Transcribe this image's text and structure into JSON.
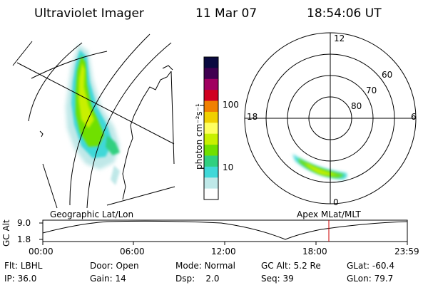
{
  "header": {
    "title": "Ultraviolet Imager",
    "date": "11 Mar 07",
    "time": "18:54:06 UT"
  },
  "geo_panel": {
    "label": "Geographic Lat/Lon"
  },
  "colorbar": {
    "unit_label": "photon cm⁻²s⁻¹",
    "tick_labels": [
      "100",
      "10"
    ],
    "colors": [
      "#0a0a40",
      "#400050",
      "#a00060",
      "#d00020",
      "#f08000",
      "#f0d000",
      "#ffff60",
      "#c8f000",
      "#70e000",
      "#30d080",
      "#40d8d8",
      "#bfe8e8",
      "#ffffff"
    ]
  },
  "polar_panel": {
    "label": "Apex MLat/MLT",
    "mlt_labels": {
      "top": "12",
      "left": "18",
      "right": "6",
      "bottom": "0"
    },
    "mlat_labels": [
      "60",
      "70",
      "80"
    ]
  },
  "orbit_plot": {
    "axis_label": "GC Alt",
    "y_ticks": [
      "9.0",
      "1.8"
    ],
    "x_ticks": [
      "00:00",
      "06:00",
      "12:00",
      "18:00",
      "23:59"
    ],
    "marker_color": "#cc0000"
  },
  "status": {
    "row1": [
      {
        "key": "Flt:",
        "value": "LBHL"
      },
      {
        "key": "Door:",
        "value": "Open"
      },
      {
        "key": "Mode:",
        "value": "Normal"
      },
      {
        "key": "GC Alt:",
        "value": "5.2 Re"
      },
      {
        "key": "GLat:",
        "value": "-60.4"
      }
    ],
    "row2": [
      {
        "key": "IP:",
        "value": "36.0"
      },
      {
        "key": "Gain:",
        "value": "14"
      },
      {
        "key": "Dsp:",
        "value": "2.0"
      },
      {
        "key": "Seq:",
        "value": "39"
      },
      {
        "key": "GLon:",
        "value": "79.7"
      }
    ]
  }
}
